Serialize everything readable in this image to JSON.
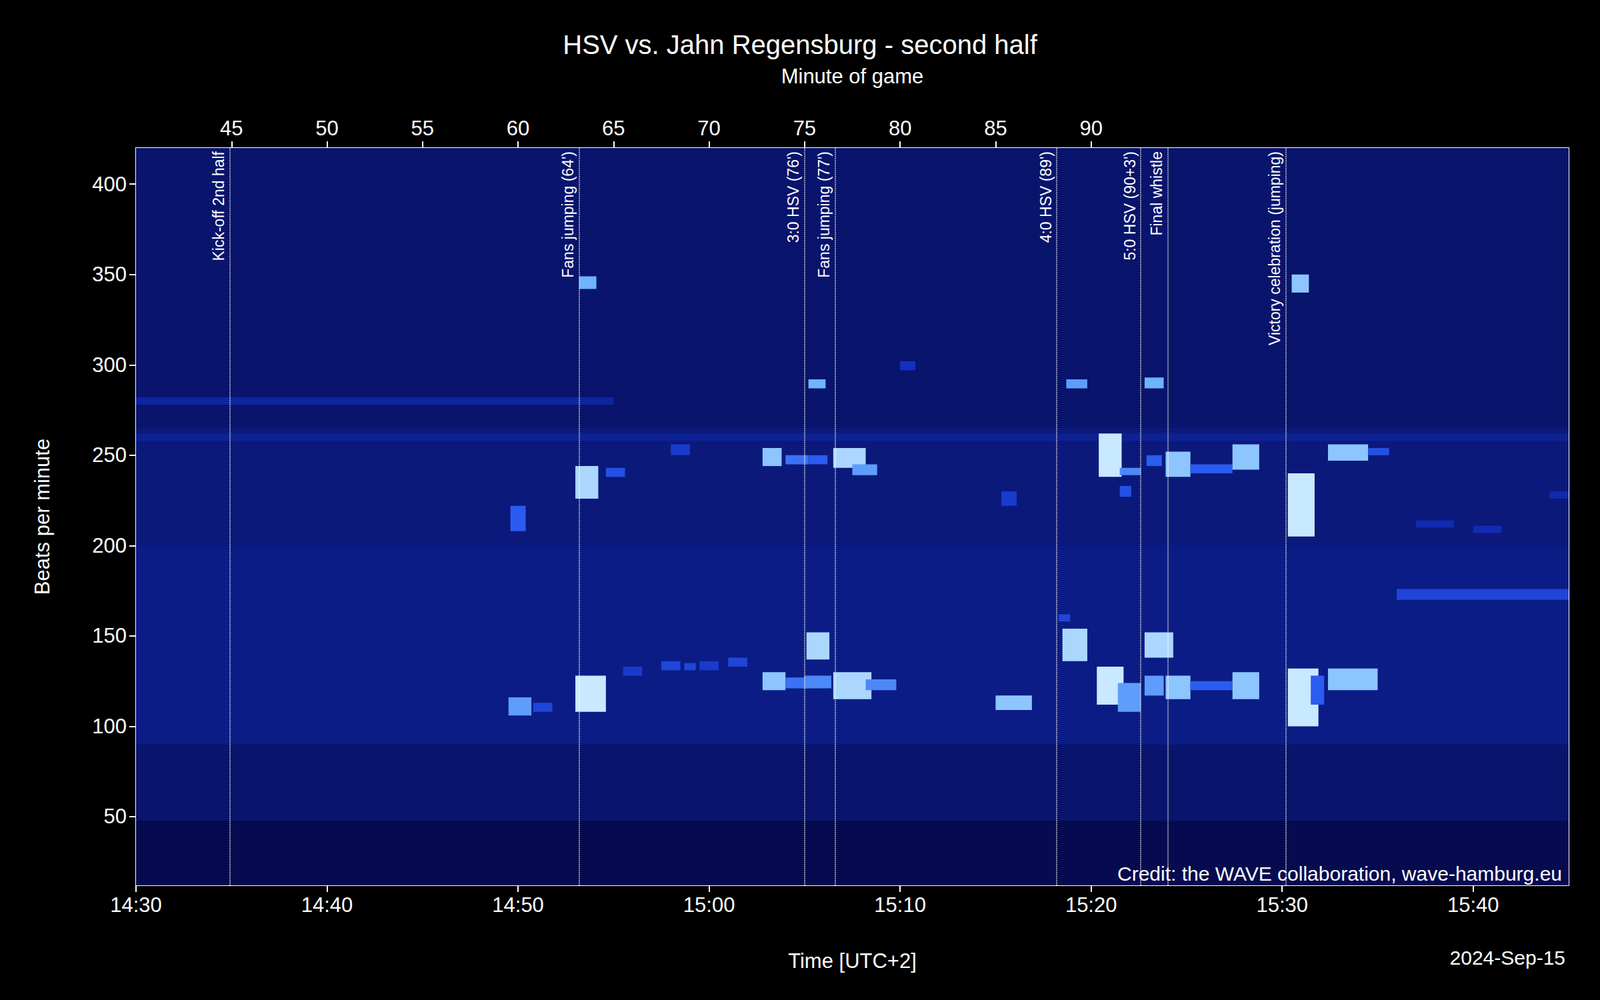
{
  "chart_data": {
    "type": "heatmap",
    "title": "HSV vs. Jahn Regensburg - second half",
    "xlabel": "Time [UTC+2]",
    "ylabel": "Beats per minute",
    "credit": "Credit: the WAVE collaboration, wave-hamburg.eu",
    "date": "2024-Sep-15",
    "xlim": [
      870,
      945
    ],
    "xticks": [
      {
        "value": 870,
        "label": "14:30"
      },
      {
        "value": 880,
        "label": "14:40"
      },
      {
        "value": 890,
        "label": "14:50"
      },
      {
        "value": 900,
        "label": "15:00"
      },
      {
        "value": 910,
        "label": "15:10"
      },
      {
        "value": 920,
        "label": "15:20"
      },
      {
        "value": 930,
        "label": "15:30"
      },
      {
        "value": 940,
        "label": "15:40"
      }
    ],
    "ylim": [
      12,
      420
    ],
    "yticks": [
      50,
      100,
      150,
      200,
      250,
      300,
      350,
      400
    ],
    "top_axis": {
      "title": "Minute of game",
      "lim": [
        40,
        115
      ],
      "ticks": [
        45,
        50,
        55,
        60,
        65,
        70,
        75,
        80,
        85,
        90
      ]
    },
    "grid": false,
    "zlim": [
      0,
      1
    ],
    "annotations": [
      {
        "x": 874.9,
        "label": "Kick-off 2nd half"
      },
      {
        "x": 893.2,
        "label": "Fans jumping (64')"
      },
      {
        "x": 905.0,
        "label": "3:0 HSV (76')"
      },
      {
        "x": 906.6,
        "label": "Fans jumping (77')"
      },
      {
        "x": 918.2,
        "label": "4:0 HSV (89')"
      },
      {
        "x": 922.6,
        "label": "5:0 HSV (90+3')"
      },
      {
        "x": 924.0,
        "label": "Final whistle"
      },
      {
        "x": 930.2,
        "label": "Victory celebration (jumping)"
      }
    ],
    "cells": [
      {
        "x": [
          870,
          945
        ],
        "y": [
          12,
          48
        ],
        "z": 0.0
      },
      {
        "x": [
          870,
          945
        ],
        "y": [
          48,
          420
        ],
        "z": 0.12
      },
      {
        "x": [
          870,
          945
        ],
        "y": [
          90,
          200
        ],
        "z": 0.22
      },
      {
        "x": [
          870,
          945
        ],
        "y": [
          200,
          265
        ],
        "z": 0.18
      },
      {
        "x": [
          870,
          895
        ],
        "y": [
          278,
          282
        ],
        "z": 0.3
      },
      {
        "x": [
          870,
          945
        ],
        "y": [
          258,
          262
        ],
        "z": 0.26
      },
      {
        "x": [
          936,
          945
        ],
        "y": [
          170,
          176
        ],
        "z": 0.5
      },
      {
        "x": [
          937,
          939
        ],
        "y": [
          210,
          214
        ],
        "z": 0.35
      },
      {
        "x": [
          940,
          941.5
        ],
        "y": [
          207,
          211
        ],
        "z": 0.35
      },
      {
        "x": [
          944,
          945
        ],
        "y": [
          226,
          230
        ],
        "z": 0.35
      },
      {
        "x": [
          889.5,
          890.7
        ],
        "y": [
          106,
          116
        ],
        "z": 0.75
      },
      {
        "x": [
          889.6,
          890.4
        ],
        "y": [
          208,
          222
        ],
        "z": 0.6
      },
      {
        "x": [
          890.8,
          891.8
        ],
        "y": [
          108,
          113
        ],
        "z": 0.5
      },
      {
        "x": [
          893.0,
          894.6
        ],
        "y": [
          108,
          128
        ],
        "z": 0.95
      },
      {
        "x": [
          893.0,
          894.2
        ],
        "y": [
          226,
          244
        ],
        "z": 0.9
      },
      {
        "x": [
          893.2,
          894.1
        ],
        "y": [
          342,
          349
        ],
        "z": 0.8
      },
      {
        "x": [
          894.6,
          895.6
        ],
        "y": [
          238,
          243
        ],
        "z": 0.55
      },
      {
        "x": [
          895.5,
          896.5
        ],
        "y": [
          128,
          133
        ],
        "z": 0.45
      },
      {
        "x": [
          897.5,
          898.5
        ],
        "y": [
          131,
          136
        ],
        "z": 0.5
      },
      {
        "x": [
          898.7,
          899.3
        ],
        "y": [
          131,
          135
        ],
        "z": 0.5
      },
      {
        "x": [
          899.5,
          900.5
        ],
        "y": [
          131,
          136
        ],
        "z": 0.45
      },
      {
        "x": [
          898,
          899
        ],
        "y": [
          250,
          256
        ],
        "z": 0.45
      },
      {
        "x": [
          901,
          902
        ],
        "y": [
          133,
          138
        ],
        "z": 0.5
      },
      {
        "x": [
          902.8,
          904.0
        ],
        "y": [
          120,
          130
        ],
        "z": 0.85
      },
      {
        "x": [
          902.8,
          903.8
        ],
        "y": [
          244,
          254
        ],
        "z": 0.85
      },
      {
        "x": [
          904,
          905.2
        ],
        "y": [
          121,
          127
        ],
        "z": 0.65
      },
      {
        "x": [
          904,
          905.2
        ],
        "y": [
          245,
          250
        ],
        "z": 0.65
      },
      {
        "x": [
          905.1,
          906.3
        ],
        "y": [
          137,
          152
        ],
        "z": 0.9
      },
      {
        "x": [
          905.2,
          906.1
        ],
        "y": [
          287,
          292
        ],
        "z": 0.8
      },
      {
        "x": [
          905,
          906.4
        ],
        "y": [
          121,
          128
        ],
        "z": 0.7
      },
      {
        "x": [
          905.2,
          906.2
        ],
        "y": [
          245,
          250
        ],
        "z": 0.6
      },
      {
        "x": [
          906.5,
          908.5
        ],
        "y": [
          115,
          130
        ],
        "z": 0.9
      },
      {
        "x": [
          906.5,
          908.2
        ],
        "y": [
          243,
          254
        ],
        "z": 0.9
      },
      {
        "x": [
          908.2,
          909.8
        ],
        "y": [
          120,
          126
        ],
        "z": 0.7
      },
      {
        "x": [
          907.5,
          908.8
        ],
        "y": [
          239,
          245
        ],
        "z": 0.75
      },
      {
        "x": [
          910,
          910.8
        ],
        "y": [
          297,
          302
        ],
        "z": 0.4
      },
      {
        "x": [
          915.0,
          916.9
        ],
        "y": [
          109,
          117
        ],
        "z": 0.85
      },
      {
        "x": [
          915.3,
          916.1
        ],
        "y": [
          222,
          230
        ],
        "z": 0.45
      },
      {
        "x": [
          918.5,
          919.8
        ],
        "y": [
          136,
          154
        ],
        "z": 0.9
      },
      {
        "x": [
          918.7,
          919.8
        ],
        "y": [
          287,
          292
        ],
        "z": 0.75
      },
      {
        "x": [
          918.3,
          918.9
        ],
        "y": [
          158,
          162
        ],
        "z": 0.5
      },
      {
        "x": [
          920.3,
          921.7
        ],
        "y": [
          112,
          133
        ],
        "z": 0.95
      },
      {
        "x": [
          920.4,
          921.6
        ],
        "y": [
          238,
          262
        ],
        "z": 0.95
      },
      {
        "x": [
          921.4,
          922.6
        ],
        "y": [
          108,
          124
        ],
        "z": 0.75
      },
      {
        "x": [
          921.5,
          922.6
        ],
        "y": [
          239,
          243
        ],
        "z": 0.7
      },
      {
        "x": [
          921.5,
          922.1
        ],
        "y": [
          227,
          233
        ],
        "z": 0.55
      },
      {
        "x": [
          922.8,
          924.3
        ],
        "y": [
          138,
          152
        ],
        "z": 0.9
      },
      {
        "x": [
          922.8,
          923.8
        ],
        "y": [
          287,
          293
        ],
        "z": 0.8
      },
      {
        "x": [
          922.8,
          923.8
        ],
        "y": [
          117,
          128
        ],
        "z": 0.75
      },
      {
        "x": [
          922.9,
          923.7
        ],
        "y": [
          244,
          250
        ],
        "z": 0.6
      },
      {
        "x": [
          923.9,
          925.2
        ],
        "y": [
          115,
          128
        ],
        "z": 0.85
      },
      {
        "x": [
          923.9,
          925.2
        ],
        "y": [
          238,
          252
        ],
        "z": 0.85
      },
      {
        "x": [
          925.2,
          927.4
        ],
        "y": [
          120,
          125
        ],
        "z": 0.6
      },
      {
        "x": [
          925.2,
          927.4
        ],
        "y": [
          240,
          245
        ],
        "z": 0.6
      },
      {
        "x": [
          927.4,
          928.8
        ],
        "y": [
          115,
          130
        ],
        "z": 0.85
      },
      {
        "x": [
          927.4,
          928.8
        ],
        "y": [
          242,
          256
        ],
        "z": 0.85
      },
      {
        "x": [
          930.3,
          931.9
        ],
        "y": [
          100,
          132
        ],
        "z": 0.95
      },
      {
        "x": [
          930.3,
          931.7
        ],
        "y": [
          205,
          240
        ],
        "z": 0.95
      },
      {
        "x": [
          930.5,
          931.4
        ],
        "y": [
          340,
          350
        ],
        "z": 0.85
      },
      {
        "x": [
          931.5,
          932.2
        ],
        "y": [
          112,
          128
        ],
        "z": 0.6
      },
      {
        "x": [
          932.4,
          935.0
        ],
        "y": [
          120,
          132
        ],
        "z": 0.85
      },
      {
        "x": [
          932.4,
          934.5
        ],
        "y": [
          247,
          256
        ],
        "z": 0.85
      },
      {
        "x": [
          934.5,
          935.6
        ],
        "y": [
          250,
          254
        ],
        "z": 0.55
      }
    ]
  }
}
